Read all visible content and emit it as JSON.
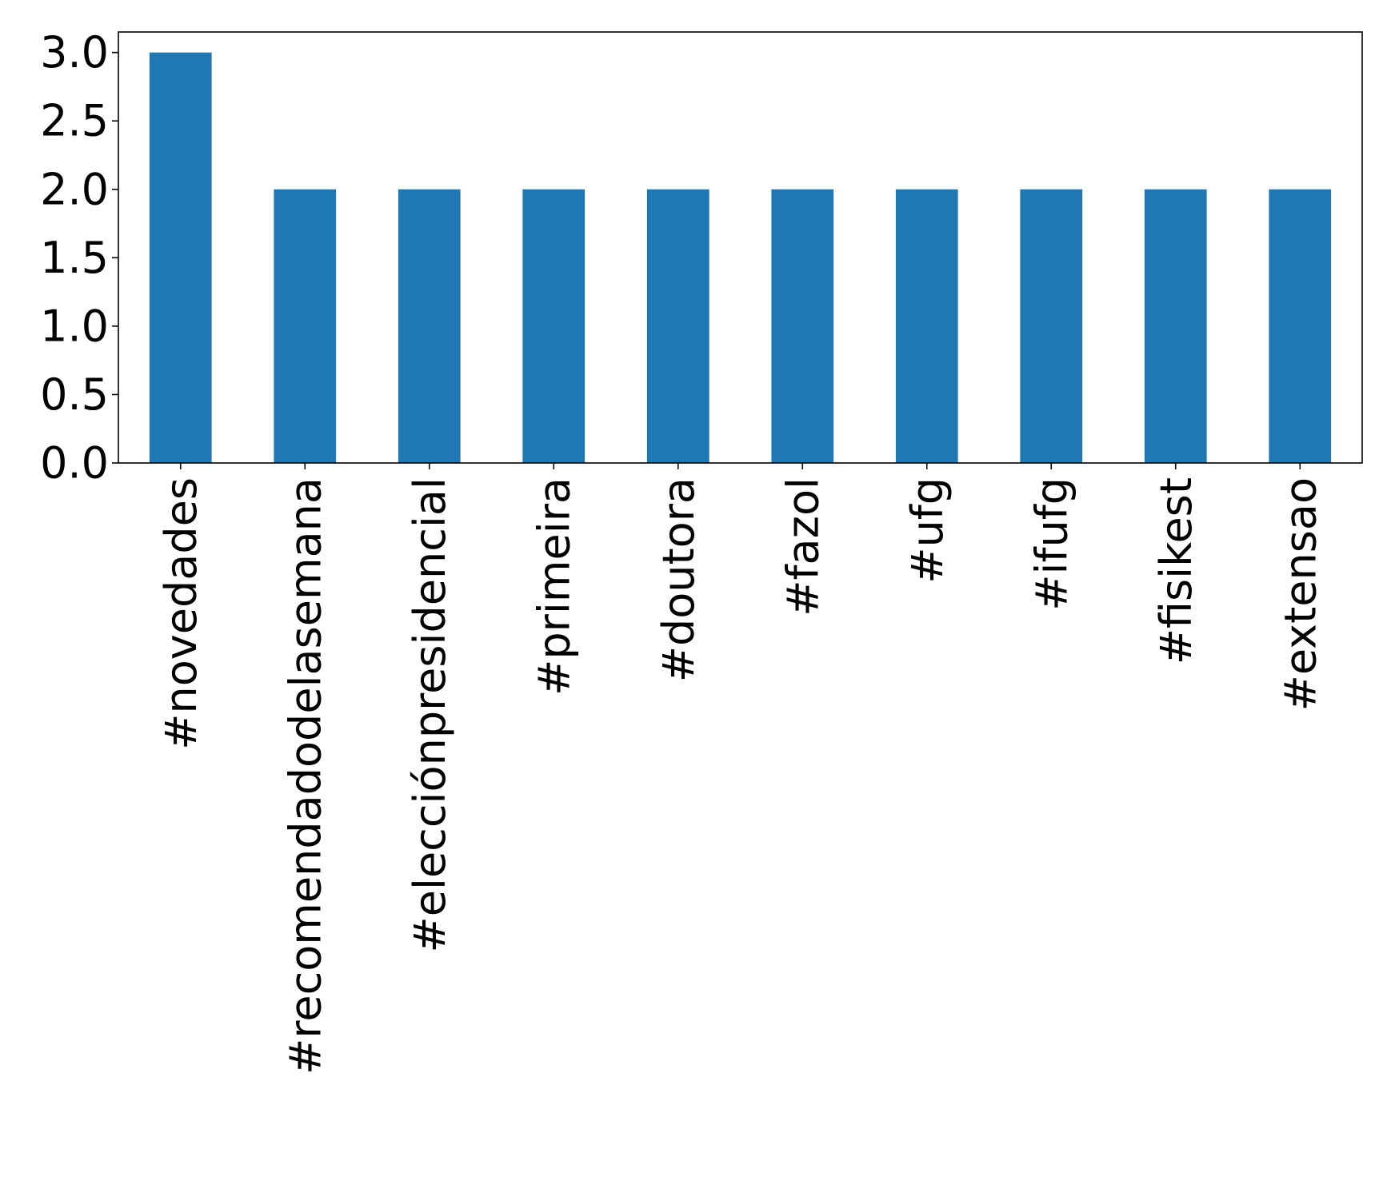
{
  "chart_data": {
    "type": "bar",
    "title": "",
    "xlabel": "",
    "ylabel": "",
    "categories": [
      "#novedades",
      "#recomendadodelasemana",
      "#elecciónpresidencial",
      "#primeira",
      "#doutora",
      "#fazol",
      "#ufg",
      "#ifufg",
      "#fisikest",
      "#extensao"
    ],
    "values": [
      3,
      2,
      2,
      2,
      2,
      2,
      2,
      2,
      2,
      2
    ],
    "ylim": [
      0,
      3.15
    ],
    "yticks": [
      0.0,
      0.5,
      1.0,
      1.5,
      2.0,
      2.5,
      3.0
    ],
    "ytick_labels": [
      "0.0",
      "0.5",
      "1.0",
      "1.5",
      "2.0",
      "2.5",
      "3.0"
    ],
    "grid": false,
    "legend": "none",
    "colors": {
      "bar": "#1f77b4"
    }
  }
}
